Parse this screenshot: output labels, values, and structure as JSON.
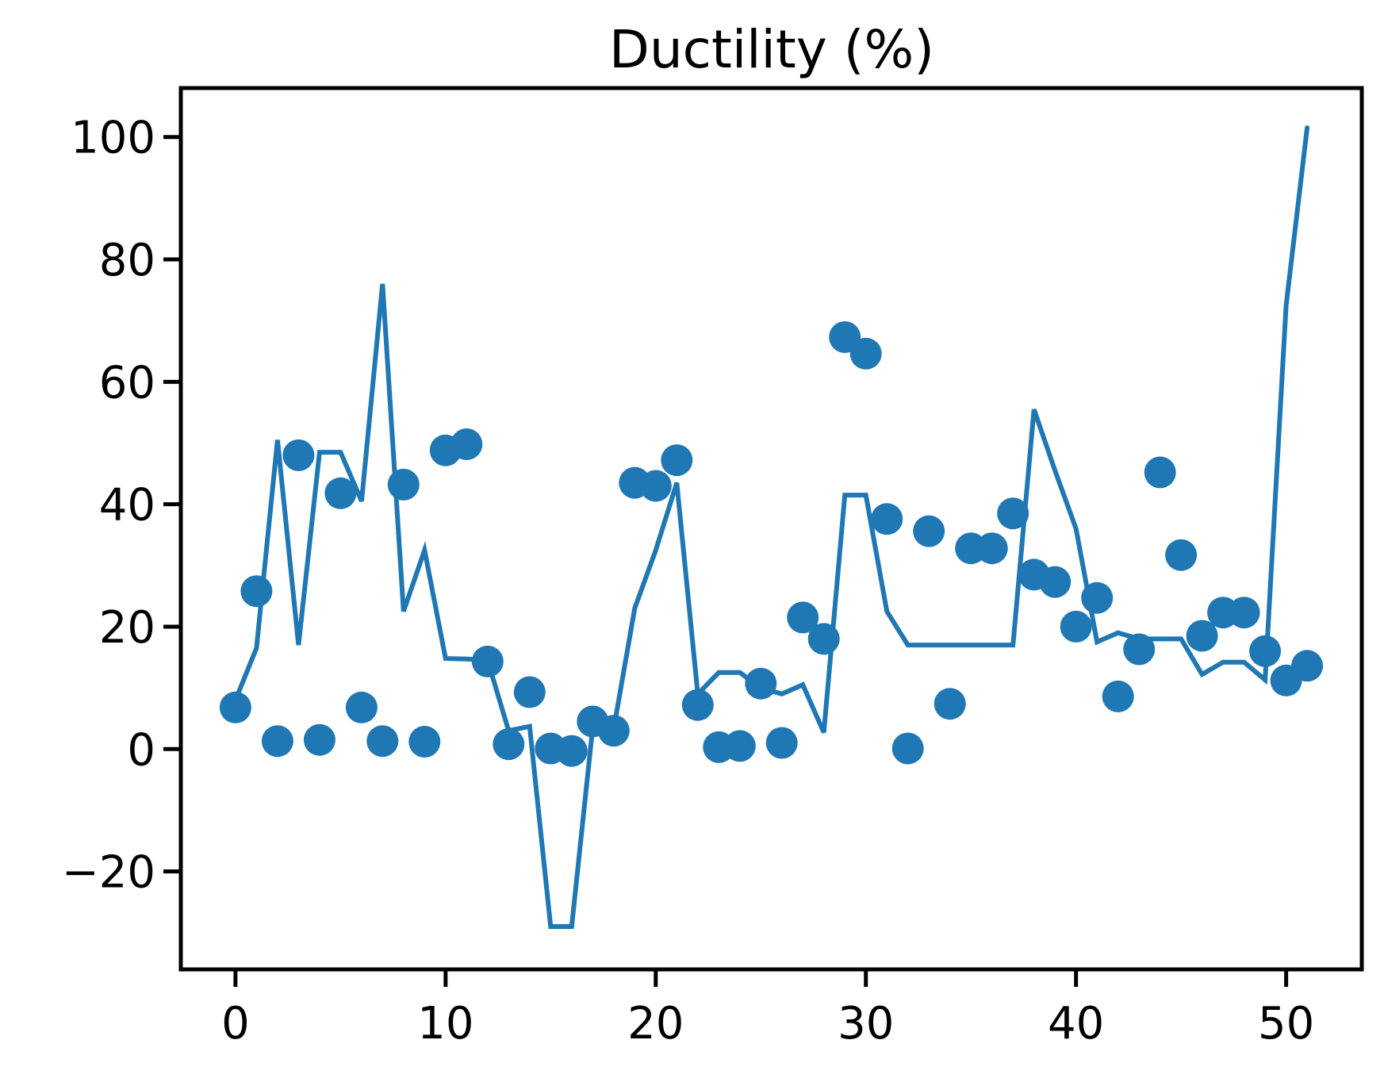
{
  "chart_data": {
    "type": "line",
    "title": "Ductility (%)",
    "xlabel": "",
    "ylabel": "",
    "xlim": [
      -2.6,
      53.6
    ],
    "ylim": [
      -36,
      108
    ],
    "xticks": [
      0,
      10,
      20,
      30,
      40,
      50
    ],
    "yticks": [
      -20,
      0,
      20,
      40,
      60,
      80,
      100
    ],
    "xtick_labels": [
      "0",
      "10",
      "20",
      "30",
      "40",
      "50"
    ],
    "ytick_labels": [
      "−20",
      "0",
      "20",
      "40",
      "60",
      "80",
      "100"
    ],
    "grid": false,
    "color": "#1f77b4",
    "series": [
      {
        "kind": "line",
        "x": [
          0,
          1,
          2,
          3,
          4,
          5,
          6,
          7,
          8,
          9,
          10,
          11,
          12,
          13,
          14,
          15,
          16,
          17,
          18,
          19,
          20,
          21,
          22,
          23,
          24,
          25,
          26,
          27,
          28,
          29,
          30,
          31,
          32,
          33,
          34,
          35,
          36,
          37,
          38,
          39,
          40,
          41,
          42,
          43,
          44,
          45,
          46,
          47,
          48,
          49,
          50,
          51
        ],
        "y": [
          8,
          16.5,
          50.5,
          17,
          48.5,
          48.5,
          40.5,
          76,
          22.5,
          32.5,
          14.8,
          14.7,
          14.5,
          3,
          3.7,
          -29,
          -29,
          3.5,
          3.3,
          23,
          32.5,
          43.5,
          9,
          12.5,
          12.5,
          10,
          9,
          10.5,
          2.7,
          41.5,
          41.5,
          22.5,
          17,
          17,
          17,
          17,
          17,
          17,
          55.5,
          45.5,
          36,
          17.5,
          19,
          18,
          18,
          18,
          12.2,
          14.2,
          14.2,
          11.3,
          72.5,
          101.5
        ]
      },
      {
        "kind": "scatter",
        "x": [
          0,
          1,
          2,
          3,
          4,
          5,
          6,
          7,
          8,
          9,
          10,
          11,
          12,
          13,
          14,
          15,
          16,
          17,
          18,
          19,
          20,
          21,
          22,
          23,
          24,
          25,
          26,
          27,
          28,
          29,
          30,
          31,
          32,
          33,
          34,
          35,
          36,
          37,
          38,
          39,
          40,
          41,
          42,
          43,
          44,
          45,
          46,
          47,
          48,
          49,
          50,
          51
        ],
        "y": [
          6.8,
          25.8,
          1.3,
          48,
          1.5,
          41.8,
          6.8,
          1.3,
          43.2,
          1.2,
          48.8,
          49.8,
          14.3,
          0.8,
          9.3,
          0.1,
          -0.3,
          4.5,
          3,
          43.5,
          43,
          47.2,
          7.2,
          0.3,
          0.5,
          10.7,
          1,
          21.5,
          18,
          67.3,
          64.6,
          37.6,
          0.1,
          35.6,
          7.4,
          32.8,
          32.8,
          38.5,
          28.5,
          27.3,
          20,
          24.7,
          8.6,
          16.3,
          45.2,
          31.7,
          18.5,
          22.3,
          22.3,
          16,
          11.2,
          13.6
        ]
      }
    ]
  }
}
